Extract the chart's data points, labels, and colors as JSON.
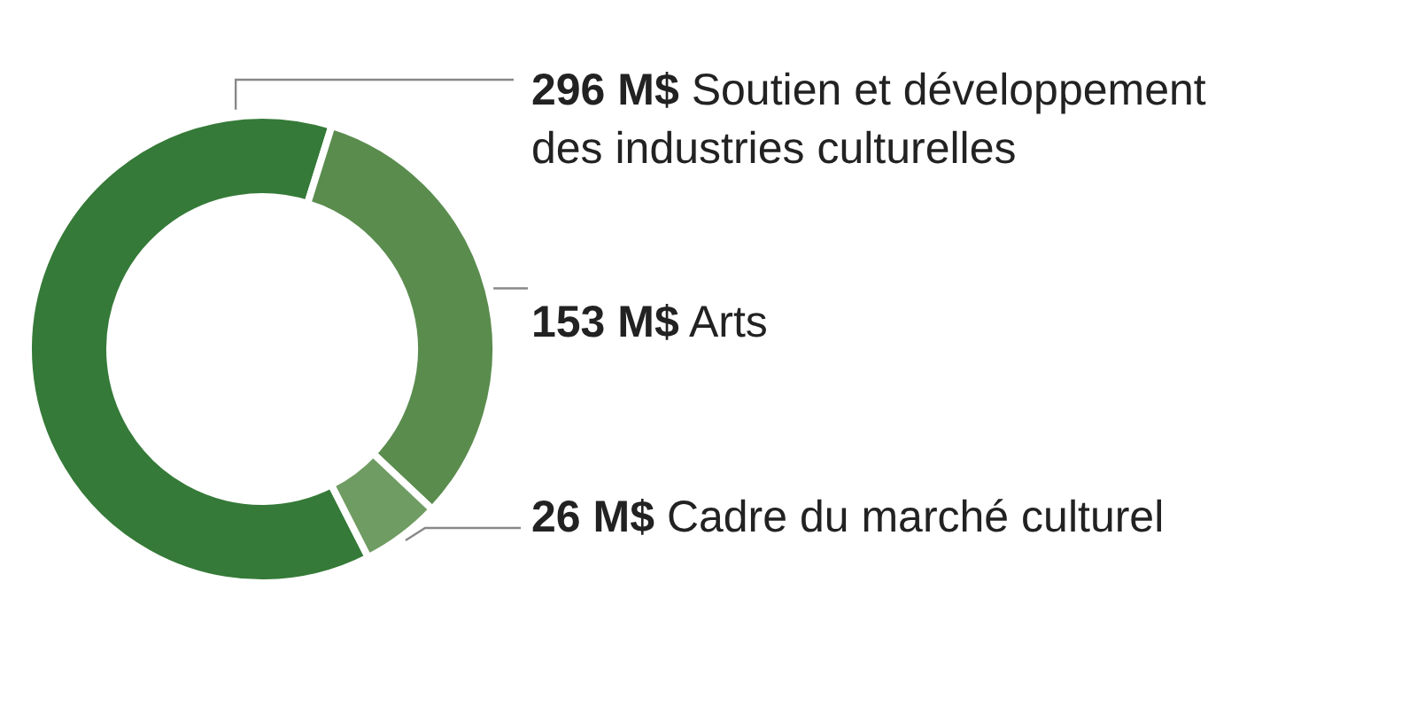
{
  "chart_data": {
    "type": "donut",
    "categories": [
      "Soutien et développement des industries culturelles",
      "Arts",
      "Cadre du marché culturel"
    ],
    "values": [
      296,
      153,
      26
    ],
    "colors": [
      "#357a38",
      "#5a8c4e",
      "#6f9c62"
    ],
    "value_labels": [
      "296 M$",
      "153 M$",
      "26 M$"
    ]
  }
}
